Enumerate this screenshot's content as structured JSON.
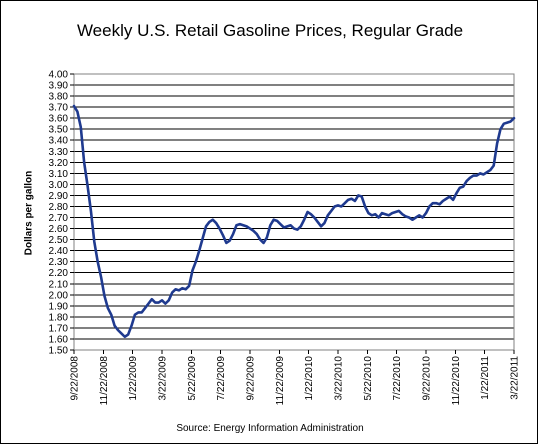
{
  "chart_data": {
    "type": "line",
    "title": "Weekly U.S. Retail Gasoline Prices, Regular Grade",
    "xlabel": "",
    "ylabel": "Dollars per gallon",
    "source": "Source:  Energy Information Administration",
    "ylim": [
      1.5,
      4.0
    ],
    "y_ticks": [
      "4.00",
      "3.90",
      "3.80",
      "3.70",
      "3.60",
      "3.50",
      "3.40",
      "3.30",
      "3.20",
      "3.10",
      "3.00",
      "2.90",
      "2.80",
      "2.70",
      "2.60",
      "2.50",
      "2.40",
      "2.30",
      "2.20",
      "2.10",
      "2.00",
      "1.90",
      "1.80",
      "1.70",
      "1.60",
      "1.50"
    ],
    "x_ticks": [
      "9/22/2008",
      "11/22/2008",
      "1/22/2009",
      "3/22/2009",
      "5/22/2009",
      "7/22/2009",
      "9/22/2009",
      "11/22/2009",
      "1/22/2010",
      "3/22/2010",
      "5/22/2010",
      "7/22/2010",
      "9/22/2010",
      "11/22/2010",
      "1/22/2011",
      "3/22/2011"
    ],
    "grid": true,
    "line_color": "#1f3a8f",
    "series": [
      {
        "values": [
          3.71,
          3.66,
          3.52,
          3.2,
          2.99,
          2.76,
          2.48,
          2.3,
          2.16,
          1.99,
          1.88,
          1.82,
          1.72,
          1.68,
          1.65,
          1.62,
          1.64,
          1.72,
          1.82,
          1.84,
          1.84,
          1.88,
          1.92,
          1.96,
          1.93,
          1.93,
          1.95,
          1.92,
          1.95,
          2.02,
          2.05,
          2.04,
          2.06,
          2.05,
          2.08,
          2.22,
          2.3,
          2.4,
          2.51,
          2.62,
          2.66,
          2.68,
          2.65,
          2.6,
          2.54,
          2.47,
          2.49,
          2.55,
          2.63,
          2.64,
          2.63,
          2.62,
          2.6,
          2.58,
          2.55,
          2.5,
          2.47,
          2.52,
          2.63,
          2.68,
          2.67,
          2.64,
          2.61,
          2.62,
          2.63,
          2.6,
          2.59,
          2.62,
          2.68,
          2.75,
          2.73,
          2.7,
          2.66,
          2.62,
          2.65,
          2.72,
          2.76,
          2.8,
          2.81,
          2.8,
          2.83,
          2.86,
          2.87,
          2.85,
          2.9,
          2.89,
          2.8,
          2.74,
          2.72,
          2.73,
          2.7,
          2.74,
          2.73,
          2.72,
          2.74,
          2.75,
          2.76,
          2.73,
          2.71,
          2.7,
          2.68,
          2.7,
          2.72,
          2.7,
          2.74,
          2.8,
          2.83,
          2.83,
          2.82,
          2.85,
          2.87,
          2.89,
          2.86,
          2.92,
          2.97,
          2.98,
          3.03,
          3.06,
          3.08,
          3.08,
          3.1,
          3.09,
          3.11,
          3.13,
          3.17,
          3.37,
          3.5,
          3.55,
          3.56,
          3.57,
          3.6
        ]
      }
    ]
  }
}
